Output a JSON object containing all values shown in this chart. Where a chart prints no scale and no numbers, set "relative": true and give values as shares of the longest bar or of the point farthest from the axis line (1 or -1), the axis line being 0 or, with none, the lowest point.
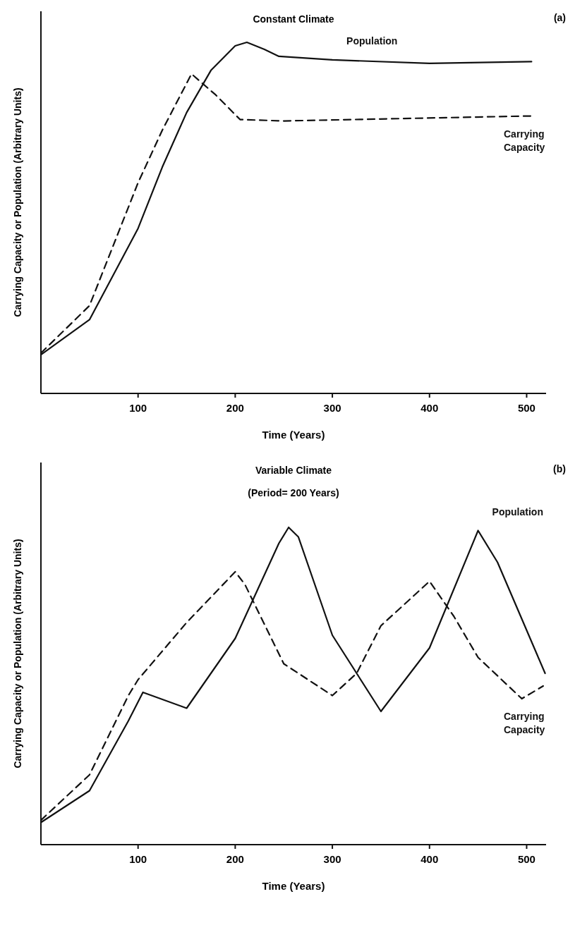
{
  "chart_data": [
    {
      "type": "line",
      "title": "Constant Climate",
      "xlabel": "Time (Years)",
      "ylabel": "Carrying Capacity or Population (Arbitrary Units)",
      "relative": true,
      "xlim": [
        0,
        520
      ],
      "xticks": [
        100,
        200,
        300,
        400,
        500
      ],
      "annotations": [
        "(a)"
      ],
      "series": [
        {
          "name": "Population",
          "color": "#111111",
          "line_style": "solid",
          "x": [
            0,
            50,
            100,
            125,
            150,
            175,
            200,
            212,
            230,
            245,
            300,
            400,
            505
          ],
          "values": [
            0.11,
            0.21,
            0.47,
            0.645,
            0.8,
            0.92,
            0.99,
            1.0,
            0.98,
            0.96,
            0.95,
            0.94,
            0.945
          ]
        },
        {
          "name": "Carrying Capacity",
          "color": "#111111",
          "line_style": "dashed",
          "x": [
            0,
            50,
            100,
            125,
            155,
            180,
            205,
            250,
            500,
            505
          ],
          "values": [
            0.115,
            0.25,
            0.6,
            0.75,
            0.91,
            0.85,
            0.78,
            0.776,
            0.79,
            0.79
          ]
        }
      ]
    },
    {
      "type": "line",
      "title": "Variable Climate",
      "subtitle": "(Period= 200 Years)",
      "xlabel": "Time (Years)",
      "ylabel": "Carrying Capacity or Population (Arbitrary Units)",
      "relative": true,
      "xlim": [
        0,
        520
      ],
      "xticks": [
        100,
        200,
        300,
        400,
        500
      ],
      "annotations": [
        "(b)"
      ],
      "series": [
        {
          "name": "Population",
          "color": "#111111",
          "line_style": "solid",
          "x": [
            0,
            50,
            90,
            105,
            150,
            200,
            245,
            255,
            265,
            300,
            350,
            400,
            450,
            470,
            519
          ],
          "values": [
            0.07,
            0.17,
            0.39,
            0.48,
            0.43,
            0.65,
            0.95,
            1.0,
            0.97,
            0.66,
            0.42,
            0.62,
            0.99,
            0.89,
            0.54
          ]
        },
        {
          "name": "Carrying Capacity",
          "color": "#111111",
          "line_style": "dashed",
          "x": [
            0,
            50,
            90,
            100,
            150,
            200,
            210,
            250,
            300,
            325,
            350,
            400,
            425,
            450,
            495,
            517
          ],
          "values": [
            0.077,
            0.22,
            0.47,
            0.52,
            0.7,
            0.86,
            0.82,
            0.57,
            0.47,
            0.54,
            0.69,
            0.83,
            0.72,
            0.59,
            0.46,
            0.5
          ]
        }
      ]
    }
  ]
}
